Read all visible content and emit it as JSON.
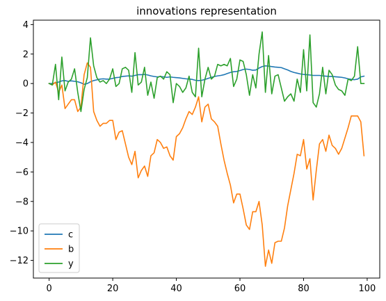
{
  "chart_data": {
    "type": "line",
    "title": "innovations representation",
    "xlabel": "",
    "ylabel": "",
    "xlim": [
      -4.95,
      103.95
    ],
    "ylim": [
      -13.2,
      4.3
    ],
    "xticks": [
      0,
      20,
      40,
      60,
      80,
      100
    ],
    "yticks": [
      -12,
      -10,
      -8,
      -6,
      -4,
      -2,
      0,
      2,
      4
    ],
    "grid": false,
    "legend": {
      "placement": "lower-left"
    },
    "series": [
      {
        "name": "c",
        "color": "#1f77b4",
        "x": [
          0,
          1,
          2,
          3,
          4,
          5,
          6,
          7,
          8,
          9,
          10,
          11,
          12,
          13,
          14,
          15,
          16,
          17,
          18,
          19,
          20,
          21,
          22,
          23,
          24,
          25,
          26,
          27,
          28,
          29,
          30,
          31,
          32,
          33,
          34,
          35,
          36,
          37,
          38,
          39,
          40,
          41,
          42,
          43,
          44,
          45,
          46,
          47,
          48,
          49,
          50,
          51,
          52,
          53,
          54,
          55,
          56,
          57,
          58,
          59,
          60,
          61,
          62,
          63,
          64,
          65,
          66,
          67,
          68,
          69,
          70,
          71,
          72,
          73,
          74,
          75,
          76,
          77,
          78,
          79,
          80,
          81,
          82,
          83,
          84,
          85,
          86,
          87,
          88,
          89,
          90,
          91,
          92,
          93,
          94,
          95,
          96,
          97,
          98,
          99
        ],
        "values": [
          0,
          0,
          0.05,
          0.1,
          0.18,
          0.2,
          0.15,
          0.18,
          0.15,
          0.12,
          0.05,
          -0.05,
          0,
          0.12,
          0.2,
          0.25,
          0.3,
          0.32,
          0.3,
          0.3,
          0.35,
          0.4,
          0.42,
          0.48,
          0.5,
          0.52,
          0.5,
          0.55,
          0.6,
          0.6,
          0.62,
          0.58,
          0.52,
          0.48,
          0.45,
          0.48,
          0.45,
          0.42,
          0.45,
          0.42,
          0.4,
          0.38,
          0.35,
          0.32,
          0.3,
          0.28,
          0.22,
          0.2,
          0.22,
          0.28,
          0.35,
          0.42,
          0.48,
          0.52,
          0.55,
          0.6,
          0.68,
          0.75,
          0.8,
          0.82,
          0.88,
          0.95,
          0.98,
          0.95,
          0.9,
          0.92,
          1.05,
          1.15,
          1.2,
          1.18,
          1.15,
          1.12,
          1.1,
          1.08,
          1.0,
          0.92,
          0.82,
          0.75,
          0.7,
          0.65,
          0.62,
          0.6,
          0.58,
          0.55,
          0.55,
          0.55,
          0.52,
          0.5,
          0.48,
          0.48,
          0.46,
          0.44,
          0.42,
          0.38,
          0.32,
          0.28,
          0.26,
          0.3,
          0.45,
          0.5
        ]
      },
      {
        "name": "b",
        "color": "#ff7f0e",
        "x": [
          0,
          1,
          2,
          3,
          4,
          5,
          6,
          7,
          8,
          9,
          10,
          11,
          12,
          13,
          14,
          15,
          16,
          17,
          18,
          19,
          20,
          21,
          22,
          23,
          24,
          25,
          26,
          27,
          28,
          29,
          30,
          31,
          32,
          33,
          34,
          35,
          36,
          37,
          38,
          39,
          40,
          41,
          42,
          43,
          44,
          45,
          46,
          47,
          48,
          49,
          50,
          51,
          52,
          53,
          54,
          55,
          56,
          57,
          58,
          59,
          60,
          61,
          62,
          63,
          64,
          65,
          66,
          67,
          68,
          69,
          70,
          71,
          72,
          73,
          74,
          75,
          76,
          77,
          78,
          79,
          80,
          81,
          82,
          83,
          84,
          85,
          86,
          87,
          88,
          89,
          90,
          91,
          92,
          93,
          94,
          95,
          96,
          97,
          98,
          99
        ],
        "values": [
          0,
          -0.1,
          0.1,
          -0.6,
          -0.1,
          -1.7,
          -1.4,
          -1.1,
          -1.1,
          -1.9,
          -1.6,
          0.6,
          1.4,
          1.1,
          -1.9,
          -2.5,
          -2.9,
          -2.7,
          -2.7,
          -2.5,
          -2.5,
          -3.8,
          -3.3,
          -3.2,
          -4.1,
          -5.0,
          -5.5,
          -4.6,
          -6.4,
          -5.9,
          -5.6,
          -6.3,
          -4.9,
          -4.7,
          -3.8,
          -4.0,
          -4.4,
          -4.3,
          -4.9,
          -5.2,
          -3.6,
          -3.4,
          -3.0,
          -2.4,
          -1.9,
          -2.1,
          -1.6,
          -0.9,
          -2.6,
          -1.6,
          -1.4,
          -2.4,
          -2.6,
          -2.9,
          -4.1,
          -5.2,
          -6.1,
          -6.9,
          -8.1,
          -7.5,
          -7.5,
          -8.5,
          -9.6,
          -9.9,
          -8.7,
          -8.7,
          -8.0,
          -9.6,
          -12.4,
          -11.3,
          -12.2,
          -10.8,
          -10.7,
          -10.7,
          -9.8,
          -8.3,
          -7.2,
          -6.1,
          -4.8,
          -4.9,
          -3.8,
          -5.8,
          -5.1,
          -7.9,
          -5.9,
          -4.1,
          -3.8,
          -4.6,
          -3.5,
          -4.2,
          -4.4,
          -4.8,
          -4.4,
          -3.7,
          -3.0,
          -2.2,
          -2.2,
          -2.2,
          -2.6,
          -4.9
        ]
      },
      {
        "name": "y",
        "color": "#2ca02c",
        "x": [
          0,
          1,
          2,
          3,
          4,
          5,
          6,
          7,
          8,
          9,
          10,
          11,
          12,
          13,
          14,
          15,
          16,
          17,
          18,
          19,
          20,
          21,
          22,
          23,
          24,
          25,
          26,
          27,
          28,
          29,
          30,
          31,
          32,
          33,
          34,
          35,
          36,
          37,
          38,
          39,
          40,
          41,
          42,
          43,
          44,
          45,
          46,
          47,
          48,
          49,
          50,
          51,
          52,
          53,
          54,
          55,
          56,
          57,
          58,
          59,
          60,
          61,
          62,
          63,
          64,
          65,
          66,
          67,
          68,
          69,
          70,
          71,
          72,
          73,
          74,
          75,
          76,
          77,
          78,
          79,
          80,
          81,
          82,
          83,
          84,
          85,
          86,
          87,
          88,
          89,
          90,
          91,
          92,
          93,
          94,
          95,
          96,
          97,
          98,
          99
        ],
        "values": [
          0,
          -0.1,
          1.3,
          -1.1,
          1.8,
          -0.5,
          0.1,
          0.3,
          1.0,
          -0.6,
          -1.9,
          -0.4,
          0.4,
          3.1,
          1.2,
          0.4,
          0.1,
          0.2,
          0.0,
          0.3,
          1.0,
          -0.2,
          0.0,
          1.0,
          1.1,
          0.9,
          -0.6,
          2.1,
          -0.1,
          0.1,
          1.1,
          -0.8,
          0.1,
          -1.0,
          0.4,
          0.5,
          0.3,
          0.8,
          0.6,
          -1.3,
          0.0,
          -0.2,
          -0.6,
          -0.3,
          0.5,
          -0.6,
          -0.9,
          2.4,
          -0.9,
          0.3,
          1.1,
          0.3,
          0.5,
          1.3,
          1.2,
          1.3,
          1.2,
          1.7,
          -0.2,
          0.3,
          1.6,
          1.5,
          0.6,
          -0.8,
          0.6,
          -0.3,
          2.0,
          3.5,
          -0.6,
          1.9,
          -0.7,
          0.5,
          0.6,
          -0.3,
          -1.2,
          -0.9,
          -0.7,
          -1.2,
          0.3,
          -0.6,
          2.3,
          -0.5,
          3.3,
          -1.3,
          -1.6,
          -0.7,
          1.1,
          -0.7,
          0.9,
          0.6,
          -0.1,
          -0.4,
          -0.5,
          -0.8,
          0.3,
          0.2,
          0.5,
          2.5,
          0.0,
          0.0
        ]
      }
    ]
  }
}
